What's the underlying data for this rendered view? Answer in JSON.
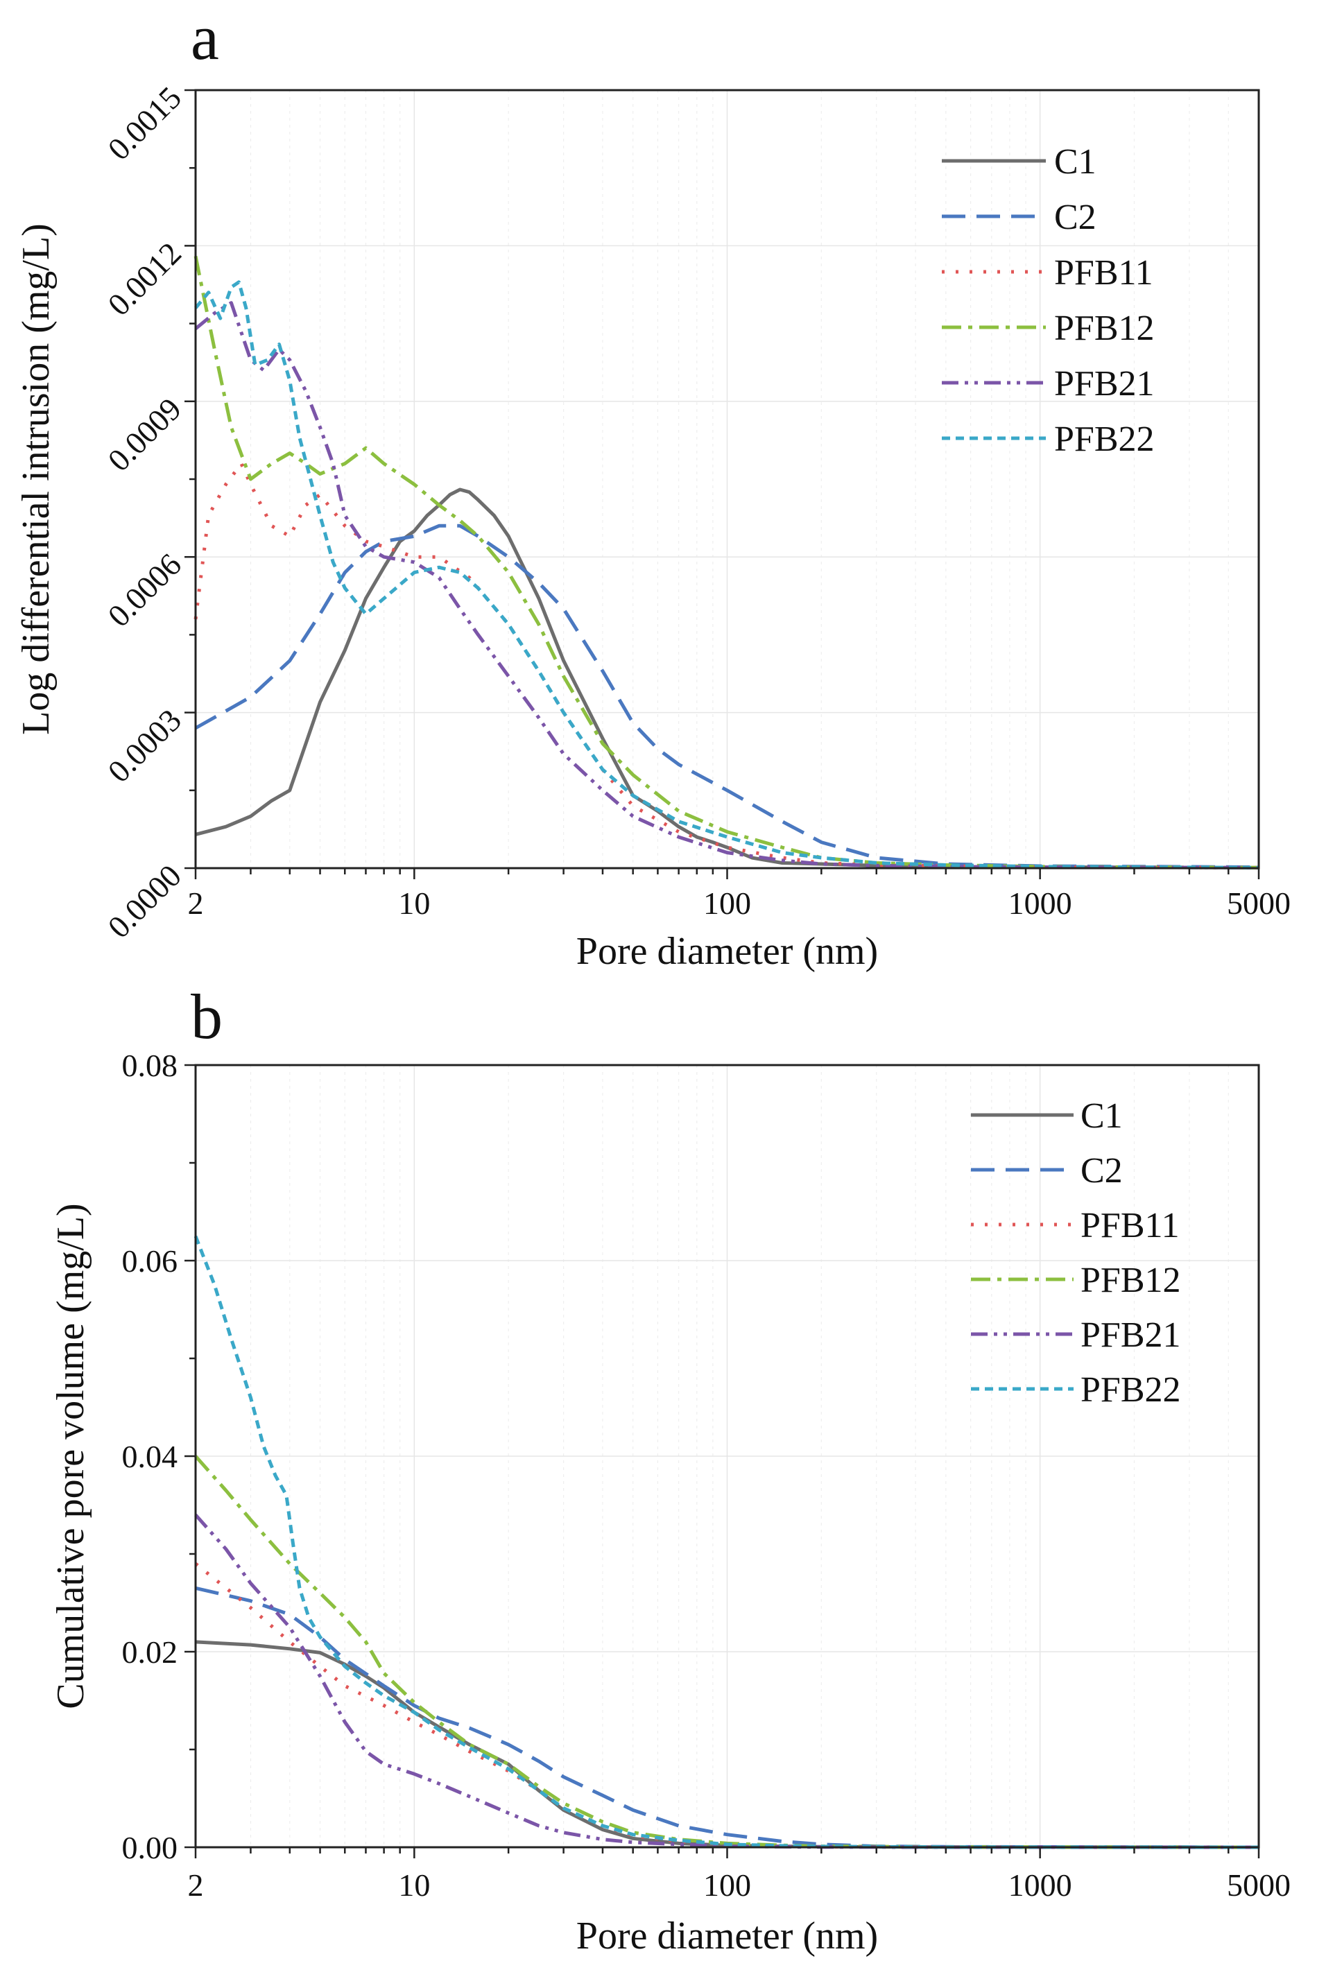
{
  "chart_data": [
    {
      "type": "line",
      "panel": "a",
      "xlabel": "Pore diameter (nm)",
      "ylabel": "Log differential intrusion (mg/L)",
      "xscale": "log",
      "xlim": [
        2,
        5000
      ],
      "ylim": [
        0,
        0.0015
      ],
      "xticks": [
        2,
        10,
        100,
        1000,
        5000
      ],
      "xtick_labels": [
        "2",
        "10",
        "100",
        "1000",
        "5000"
      ],
      "yticks": [
        0,
        0.0003,
        0.0006,
        0.0009,
        0.0012,
        0.0015
      ],
      "ytick_labels": [
        "0.0000",
        "0.0003",
        "0.0006",
        "0.0009",
        "0.0012",
        "0.0015"
      ],
      "grid": true,
      "legend_position": "top-right",
      "series": [
        {
          "name": "C1",
          "color": "#6d6d6d",
          "dash": "solid",
          "x": [
            2,
            2.5,
            3,
            3.5,
            4,
            5,
            6,
            7,
            8,
            9,
            10,
            11,
            12,
            13,
            14,
            15,
            16,
            18,
            20,
            25,
            30,
            40,
            50,
            60,
            70,
            80,
            90,
            100,
            120,
            150,
            200,
            300,
            500,
            1000,
            5000
          ],
          "y": [
            6.5e-05,
            8e-05,
            0.0001,
            0.00013,
            0.00015,
            0.00032,
            0.00042,
            0.00052,
            0.00058,
            0.00063,
            0.00065,
            0.00068,
            0.0007,
            0.00072,
            0.00073,
            0.000725,
            0.00071,
            0.00068,
            0.00064,
            0.00052,
            0.0004,
            0.00025,
            0.00014,
            0.00011,
            8e-05,
            6e-05,
            5e-05,
            4e-05,
            2e-05,
            1e-05,
            8e-06,
            5e-06,
            3e-06,
            2e-06,
            1e-06
          ]
        },
        {
          "name": "C2",
          "color": "#4a78c0",
          "dash": "long-dash",
          "x": [
            2,
            3,
            4,
            5,
            6,
            7,
            8,
            10,
            12,
            14,
            16,
            20,
            25,
            30,
            40,
            50,
            60,
            70,
            100,
            150,
            200,
            300,
            500,
            1000,
            5000
          ],
          "y": [
            0.00027,
            0.00033,
            0.0004,
            0.00049,
            0.00057,
            0.00061,
            0.00063,
            0.00064,
            0.00066,
            0.00066,
            0.00064,
            0.0006,
            0.00055,
            0.0005,
            0.00038,
            0.00028,
            0.00023,
            0.0002,
            0.00015,
            9e-05,
            5e-05,
            2e-05,
            8e-06,
            4e-06,
            2e-06
          ]
        },
        {
          "name": "PFB11",
          "color": "#e05555",
          "dash": "dotted",
          "x": [
            2,
            2.2,
            2.5,
            2.8,
            3,
            3.5,
            4,
            4.5,
            5,
            6,
            7,
            8,
            10,
            12,
            15,
            20,
            25,
            30,
            40,
            50,
            70,
            100,
            150,
            200,
            300,
            500,
            1000,
            5000
          ],
          "y": [
            0.00048,
            0.00068,
            0.00074,
            0.00078,
            0.00074,
            0.00066,
            0.00064,
            0.0007,
            0.00072,
            0.00066,
            0.00063,
            0.00062,
            0.0006,
            0.0006,
            0.00056,
            0.00047,
            0.00038,
            0.0003,
            0.00019,
            0.00012,
            7e-05,
            4e-05,
            2e-05,
            1e-05,
            6e-06,
            4e-06,
            2e-06,
            1e-06
          ]
        },
        {
          "name": "PFB12",
          "color": "#8cbf3f",
          "dash": "dash-dot",
          "x": [
            2,
            2.3,
            2.6,
            3,
            3.5,
            4,
            4.5,
            5,
            6,
            7,
            8,
            10,
            12,
            14,
            16,
            20,
            25,
            30,
            40,
            50,
            70,
            100,
            150,
            200,
            300,
            500,
            1000,
            5000
          ],
          "y": [
            0.00118,
            0.001,
            0.00085,
            0.00075,
            0.00078,
            0.0008,
            0.00078,
            0.00076,
            0.00078,
            0.00081,
            0.00078,
            0.00074,
            0.0007,
            0.00067,
            0.00064,
            0.00057,
            0.00047,
            0.00037,
            0.00024,
            0.00018,
            0.00011,
            7e-05,
            4e-05,
            2e-05,
            1e-05,
            6e-06,
            3e-06,
            1e-06
          ]
        },
        {
          "name": "PFB21",
          "color": "#7b55a8",
          "dash": "dash-dot-dot",
          "x": [
            2,
            2.3,
            2.6,
            3,
            3.3,
            3.7,
            4,
            4.5,
            5,
            5.5,
            6,
            7,
            8,
            10,
            12,
            14,
            16,
            20,
            25,
            30,
            40,
            50,
            70,
            100,
            150,
            200,
            300,
            500,
            1000,
            5000
          ],
          "y": [
            0.00104,
            0.00107,
            0.00109,
            0.00098,
            0.00096,
            0.001,
            0.00098,
            0.00092,
            0.00085,
            0.00078,
            0.00068,
            0.00062,
            0.0006,
            0.00059,
            0.00056,
            0.0005,
            0.00045,
            0.00037,
            0.00029,
            0.00022,
            0.00015,
            0.0001,
            6e-05,
            3e-05,
            1.5e-05,
            8e-06,
            5e-06,
            3e-06,
            2e-06,
            1e-06
          ]
        },
        {
          "name": "PFB22",
          "color": "#3aa8c8",
          "dash": "short-dash",
          "x": [
            2,
            2.2,
            2.4,
            2.6,
            2.75,
            2.9,
            3.1,
            3.4,
            3.7,
            4,
            4.3,
            5,
            5.5,
            6,
            7,
            8,
            10,
            12,
            14,
            16,
            20,
            25,
            30,
            40,
            50,
            70,
            100,
            150,
            200,
            300,
            500,
            1000,
            5000
          ],
          "y": [
            0.00108,
            0.00111,
            0.00106,
            0.00112,
            0.00113,
            0.00108,
            0.00097,
            0.00098,
            0.00101,
            0.00094,
            0.00083,
            0.00068,
            0.00059,
            0.00054,
            0.00049,
            0.00052,
            0.00057,
            0.00058,
            0.00057,
            0.00054,
            0.00047,
            0.00038,
            0.0003,
            0.00019,
            0.00014,
            9e-05,
            6e-05,
            3e-05,
            2e-05,
            1e-05,
            6e-06,
            3e-06,
            1e-06
          ]
        }
      ]
    },
    {
      "type": "line",
      "panel": "b",
      "xlabel": "Pore diameter (nm)",
      "ylabel": "Cumulative pore volume (mg/L)",
      "xscale": "log",
      "xlim": [
        2,
        5000
      ],
      "ylim": [
        0,
        0.08
      ],
      "xticks": [
        2,
        10,
        100,
        1000,
        5000
      ],
      "xtick_labels": [
        "2",
        "10",
        "100",
        "1000",
        "5000"
      ],
      "yticks": [
        0,
        0.02,
        0.04,
        0.06,
        0.08
      ],
      "ytick_labels": [
        "0.00",
        "0.02",
        "0.04",
        "0.06",
        "0.08"
      ],
      "grid": true,
      "legend_position": "top-right",
      "series": [
        {
          "name": "C1",
          "color": "#6d6d6d",
          "dash": "solid",
          "x": [
            2,
            3,
            4,
            5,
            6,
            7,
            8,
            10,
            12,
            15,
            20,
            25,
            30,
            40,
            50,
            70,
            100,
            150,
            200,
            500,
            5000
          ],
          "y": [
            0.021,
            0.0207,
            0.0203,
            0.0199,
            0.0187,
            0.0175,
            0.0163,
            0.0138,
            0.0123,
            0.0105,
            0.0085,
            0.0058,
            0.0038,
            0.0018,
            0.0009,
            0.0004,
            0.0002,
            0.0001,
            5e-05,
            2e-05,
            0
          ]
        },
        {
          "name": "C2",
          "color": "#4a78c0",
          "dash": "long-dash",
          "x": [
            2,
            3,
            4,
            5,
            6,
            8,
            10,
            12,
            15,
            20,
            25,
            30,
            40,
            50,
            70,
            100,
            150,
            200,
            300,
            500,
            5000
          ],
          "y": [
            0.0265,
            0.0252,
            0.0238,
            0.0215,
            0.0192,
            0.0165,
            0.0145,
            0.0132,
            0.0122,
            0.0105,
            0.0088,
            0.0072,
            0.0053,
            0.0038,
            0.0022,
            0.0013,
            0.0006,
            0.0003,
            0.0001,
            5e-05,
            0
          ]
        },
        {
          "name": "PFB11",
          "color": "#e05555",
          "dash": "dotted",
          "x": [
            2,
            3,
            4,
            5,
            6,
            8,
            10,
            12,
            15,
            20,
            25,
            30,
            40,
            50,
            70,
            100,
            150,
            200,
            500,
            5000
          ],
          "y": [
            0.029,
            0.0245,
            0.021,
            0.0185,
            0.0165,
            0.0145,
            0.0128,
            0.0115,
            0.0098,
            0.0078,
            0.0058,
            0.004,
            0.0022,
            0.0012,
            0.0006,
            0.0003,
            0.0001,
            5e-05,
            2e-05,
            0
          ]
        },
        {
          "name": "PFB12",
          "color": "#8cbf3f",
          "dash": "dash-dot",
          "x": [
            2,
            2.5,
            3,
            4,
            5,
            6,
            7,
            8,
            10,
            12,
            15,
            20,
            25,
            30,
            40,
            50,
            70,
            100,
            150,
            200,
            500,
            5000
          ],
          "y": [
            0.04,
            0.0365,
            0.0335,
            0.029,
            0.026,
            0.0235,
            0.021,
            0.0178,
            0.0148,
            0.0128,
            0.0105,
            0.0085,
            0.0062,
            0.0045,
            0.0026,
            0.0015,
            0.0008,
            0.0004,
            0.0002,
            0.0001,
            3e-05,
            0
          ]
        },
        {
          "name": "PFB21",
          "color": "#7b55a8",
          "dash": "dash-dot-dot",
          "x": [
            2,
            2.5,
            3,
            4,
            5,
            6,
            7,
            8,
            10,
            12,
            15,
            20,
            25,
            30,
            40,
            50,
            70,
            100,
            150,
            200,
            500,
            5000
          ],
          "y": [
            0.034,
            0.0305,
            0.027,
            0.0225,
            0.0175,
            0.0128,
            0.0098,
            0.0085,
            0.0075,
            0.0065,
            0.0052,
            0.0035,
            0.0022,
            0.0015,
            0.0008,
            0.0005,
            0.0003,
            0.0001,
            5e-05,
            2e-05,
            1e-05,
            0
          ]
        },
        {
          "name": "PFB22",
          "color": "#3aa8c8",
          "dash": "short-dash",
          "x": [
            2,
            2.3,
            2.6,
            3,
            3.3,
            3.6,
            3.9,
            4.1,
            4.3,
            4.6,
            5,
            6,
            7,
            8,
            10,
            12,
            15,
            20,
            25,
            30,
            40,
            50,
            70,
            100,
            150,
            200,
            500,
            5000
          ],
          "y": [
            0.0625,
            0.0575,
            0.052,
            0.046,
            0.041,
            0.038,
            0.036,
            0.031,
            0.0265,
            0.0235,
            0.0215,
            0.0185,
            0.0168,
            0.0155,
            0.0138,
            0.012,
            0.0102,
            0.008,
            0.0058,
            0.004,
            0.0022,
            0.0013,
            0.0007,
            0.0003,
            0.00015,
            8e-05,
            2e-05,
            0
          ]
        }
      ]
    }
  ],
  "panels": [
    {
      "letter": "a"
    },
    {
      "letter": "b"
    }
  ]
}
